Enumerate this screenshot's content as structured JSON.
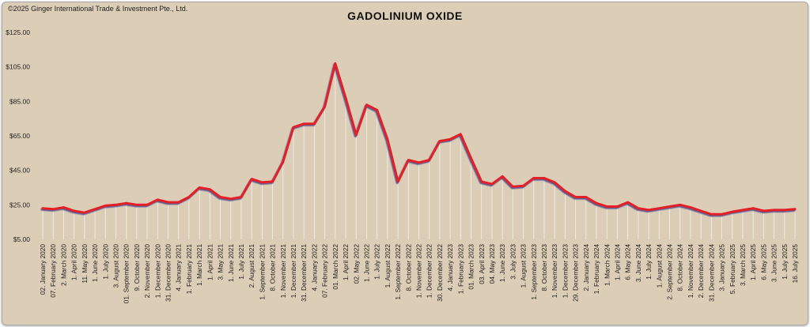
{
  "copyright": "©2025 Ginger International Trade & Investment Pte., Ltd.",
  "chart_data": {
    "type": "line",
    "title": "GADOLINIUM OXIDE",
    "xlabel": "",
    "ylabel": "",
    "ylim": [
      5,
      125
    ],
    "yticks": [
      "$5.00",
      "$25.00",
      "$45.00",
      "$65.00",
      "$85.00",
      "$105.00",
      "$125.00"
    ],
    "ytick_values": [
      5,
      25,
      45,
      65,
      85,
      105,
      125
    ],
    "grid": false,
    "legend": "none",
    "colors": {
      "line": "#e41f26",
      "shadow": "#5b5f93",
      "droplines": "#f2f2f2"
    },
    "categories": [
      "02. January 2020",
      "07. February 2020",
      "2. March 2020",
      "1. April 2020",
      "11. May 2020",
      "1. June 2020",
      "1. July 2020",
      "3. August 2020",
      "01. September 2020",
      "9. October 2020",
      "2. November 2020",
      "1. December 2020",
      "31. December 2020",
      "4. January 2021",
      "1. February 2021",
      "1. March 2021",
      "1. April 2021",
      "3. May 2021",
      "1. June 2021",
      "1. July 2021",
      "2. August 2021",
      "1. September 2021",
      "8. October 2021",
      "1. November 2021",
      "1. December 2021",
      "31. December 2021",
      "4. January 2022",
      "07. February 2022",
      "01. March 2022",
      "1. April 2022",
      "02. May 2022",
      "1. June 2022",
      "1. July 2022",
      "1. August 2022",
      "1. September 2022",
      "8. October 2022",
      "1. November 2022",
      "1. December 2022",
      "30. December 2022",
      "4. January 2023",
      "1. February 2023",
      "01. March 2023",
      "03. April 2023",
      "04. May 2023",
      "1. June 2023",
      "3. July 2023",
      "1. August 2023",
      "1. September 2023",
      "8. October 2023",
      "1. November 2023",
      "1. December 2023",
      "29. December 2023",
      "2. January 2024",
      "1. February 2024",
      "1. March 2024",
      "1. April 2024",
      "6. May 2024",
      "3. June 2024",
      "1. July 2024",
      "1. August 2024",
      "2. September 2024",
      "8. October 2024",
      "1. November 2024",
      "2. December 2024",
      "31. December 2024",
      "3. January 2025",
      "5. February 2025",
      "3. March 2025",
      "1. April 2025",
      "6. May 2025",
      "3. June 2025",
      "1. July 2025",
      "16. July 2025"
    ],
    "series": [
      {
        "values": [
          23,
          22.5,
          23.5,
          21.5,
          20.5,
          22.5,
          24.5,
          25,
          26,
          25,
          25,
          28,
          26.5,
          26.5,
          29.5,
          35,
          34,
          29.5,
          28.5,
          29.5,
          40,
          38,
          38.5,
          50,
          70,
          72,
          72,
          82,
          107,
          87,
          65.5,
          83,
          80,
          63,
          38.5,
          51,
          49.5,
          51,
          62,
          63,
          66,
          52,
          38.5,
          37,
          41.5,
          35.5,
          36,
          40.5,
          40.5,
          38,
          33,
          29.5,
          29.5,
          26,
          24,
          24,
          26.5,
          23,
          22,
          23,
          24,
          25,
          23.5,
          21.5,
          19.5,
          19.5,
          21,
          22,
          23,
          21.5,
          22,
          22,
          22.5
        ]
      }
    ]
  }
}
